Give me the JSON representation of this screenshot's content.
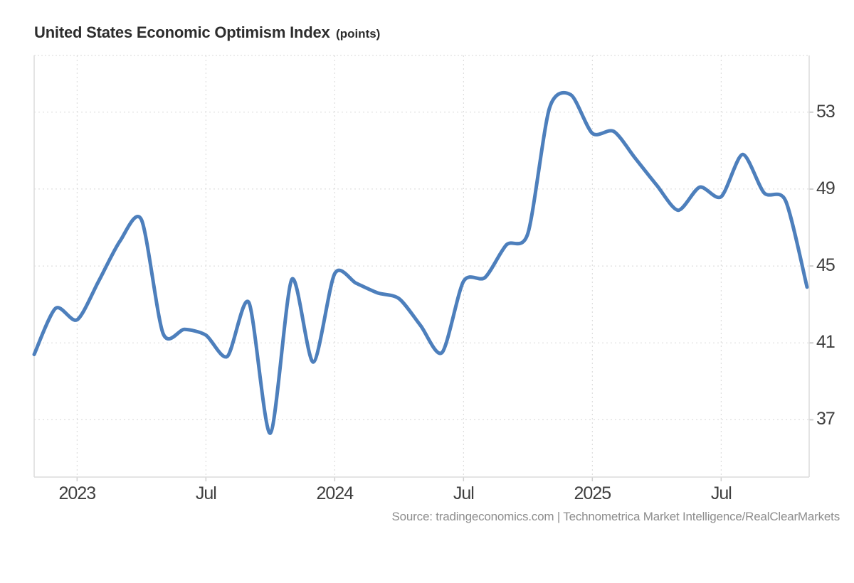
{
  "title": {
    "main": "United States Economic Optimism Index",
    "unit": "(points)"
  },
  "source_text": "Source: tradingeconomics.com | Technometrica Market Intelligence/RealClearMarkets",
  "colors": {
    "line": "#4d7fbc",
    "gridline": "#d8d8d8",
    "axis_border": "#dcdcdc",
    "tick_mark": "#cfcfcf",
    "title_text": "#2d2d2d",
    "tick_text": "#3f3f3f",
    "source_text": "#8d8d8d",
    "background": "#ffffff"
  },
  "chart_data": {
    "type": "line",
    "title": "United States Economic Optimism Index",
    "unit": "points",
    "series_name": "Economic Optimism Index",
    "x": [
      "2022-11",
      "2022-12",
      "2023-01",
      "2023-02",
      "2023-03",
      "2023-04",
      "2023-05",
      "2023-06",
      "2023-07",
      "2023-08",
      "2023-09",
      "2023-10",
      "2023-11",
      "2023-12",
      "2024-01",
      "2024-02",
      "2024-03",
      "2024-04",
      "2024-05",
      "2024-06",
      "2024-07",
      "2024-08",
      "2024-09",
      "2024-10",
      "2024-11",
      "2024-12",
      "2025-01",
      "2025-02",
      "2025-03",
      "2025-04",
      "2025-05",
      "2025-06",
      "2025-07",
      "2025-08",
      "2025-09",
      "2025-10",
      "2025-11"
    ],
    "values": [
      40.4,
      42.8,
      42.2,
      44.2,
      46.3,
      47.4,
      41.5,
      41.7,
      41.4,
      40.3,
      43.1,
      36.3,
      44.3,
      40.0,
      44.6,
      44.1,
      43.6,
      43.3,
      41.9,
      40.5,
      44.2,
      44.4,
      46.1,
      46.7,
      53.2,
      53.9,
      51.9,
      52.0,
      50.6,
      49.2,
      47.9,
      49.1,
      48.6,
      50.8,
      48.8,
      48.4,
      43.9
    ],
    "y_ticks": [
      53,
      49,
      45,
      41,
      37
    ],
    "x_tick_marks": [
      {
        "index": 2,
        "label": "2023"
      },
      {
        "index": 8,
        "label": "Jul"
      },
      {
        "index": 14,
        "label": "2024"
      },
      {
        "index": 20,
        "label": "Jul"
      },
      {
        "index": 26,
        "label": "2025"
      },
      {
        "index": 32,
        "label": "Jul"
      }
    ],
    "ylim": [
      34,
      56
    ],
    "y_axis_side": "right",
    "grid": "dotted",
    "legend": "none",
    "smooth": true,
    "line_color": "#4d7fbc",
    "line_width": 5
  }
}
